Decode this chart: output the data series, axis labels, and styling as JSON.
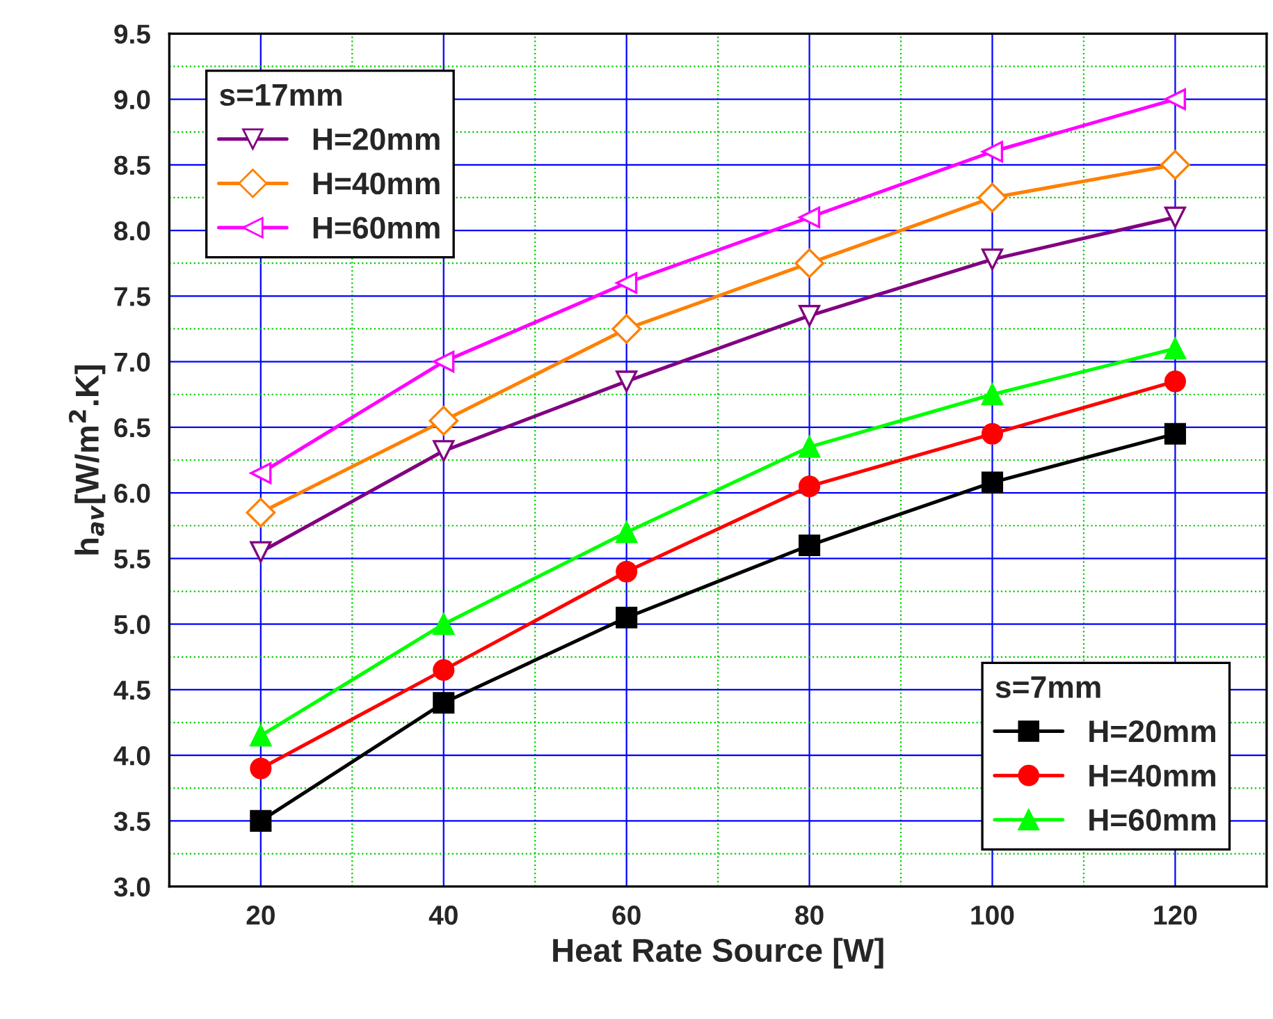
{
  "chart_data": {
    "type": "line",
    "xlabel": "Heat Rate Source [W]",
    "ylabel": "h$_{av}$[W/m$^{2}$.K]",
    "x": [
      20,
      40,
      60,
      80,
      100,
      120
    ],
    "xlim": [
      10,
      130
    ],
    "xticks": [
      20,
      {
        "value": 30,
        "label": null
      },
      40,
      {
        "value": 50,
        "label": null
      },
      60,
      {
        "value": 70,
        "label": null
      },
      80,
      {
        "value": 90,
        "label": null
      },
      100,
      {
        "value": 110,
        "label": null
      },
      120
    ],
    "ylim": [
      3.0,
      9.5
    ],
    "yticks": [
      {
        "value": 3.0,
        "label": "3.0"
      },
      {
        "value": 3.25,
        "label": null
      },
      {
        "value": 3.5,
        "label": "3.5"
      },
      {
        "value": 3.75,
        "label": null
      },
      {
        "value": 4.0,
        "label": "4.0"
      },
      {
        "value": 4.25,
        "label": null
      },
      {
        "value": 4.5,
        "label": "4.5"
      },
      {
        "value": 4.75,
        "label": null
      },
      {
        "value": 5.0,
        "label": "5.0"
      },
      {
        "value": 5.25,
        "label": null
      },
      {
        "value": 5.5,
        "label": "5.5"
      },
      {
        "value": 5.75,
        "label": null
      },
      {
        "value": 6.0,
        "label": "6.0"
      },
      {
        "value": 6.25,
        "label": null
      },
      {
        "value": 6.5,
        "label": "6.5"
      },
      {
        "value": 6.75,
        "label": null
      },
      {
        "value": 7.0,
        "label": "7.0"
      },
      {
        "value": 7.25,
        "label": null
      },
      {
        "value": 7.5,
        "label": "7.5"
      },
      {
        "value": 7.75,
        "label": null
      },
      {
        "value": 8.0,
        "label": "8.0"
      },
      {
        "value": 8.25,
        "label": null
      },
      {
        "value": 8.5,
        "label": "8.5"
      },
      {
        "value": 8.75,
        "label": null
      },
      {
        "value": 9.0,
        "label": "9.0"
      },
      {
        "value": 9.25,
        "label": null
      },
      {
        "value": 9.5,
        "label": "9.5"
      }
    ],
    "grid": true,
    "legend": [
      "top left",
      "bottom right"
    ],
    "legend_title": [
      "s=17mm",
      "s=7mm"
    ],
    "series": [
      {
        "name": "H=20mm",
        "color": "#800080",
        "marker": "triangle_down",
        "values": [
          5.55,
          6.32,
          6.85,
          7.35,
          7.78,
          8.1
        ]
      },
      {
        "name": "H=40mm",
        "color": "#ff8000",
        "marker": "diamond",
        "values": [
          5.85,
          6.55,
          7.25,
          7.75,
          8.25,
          8.5
        ]
      },
      {
        "name": "H=60mm",
        "color": "#ff00ff",
        "marker": "triangle_left",
        "values": [
          6.15,
          7.0,
          7.6,
          8.1,
          8.6,
          9.0
        ]
      },
      {
        "name": "H=20mm",
        "color": "#000000",
        "marker": "square",
        "values": [
          3.5,
          4.4,
          5.05,
          5.6,
          6.08,
          6.45
        ]
      },
      {
        "name": "H=40mm",
        "color": "#ff0000",
        "marker": "circle",
        "values": [
          3.9,
          4.65,
          5.4,
          6.05,
          6.45,
          6.85
        ]
      },
      {
        "name": "H=60mm",
        "color": "#00ff00",
        "marker": "triangle",
        "values": [
          4.15,
          5.0,
          5.7,
          6.35,
          6.75,
          7.1
        ]
      }
    ]
  }
}
